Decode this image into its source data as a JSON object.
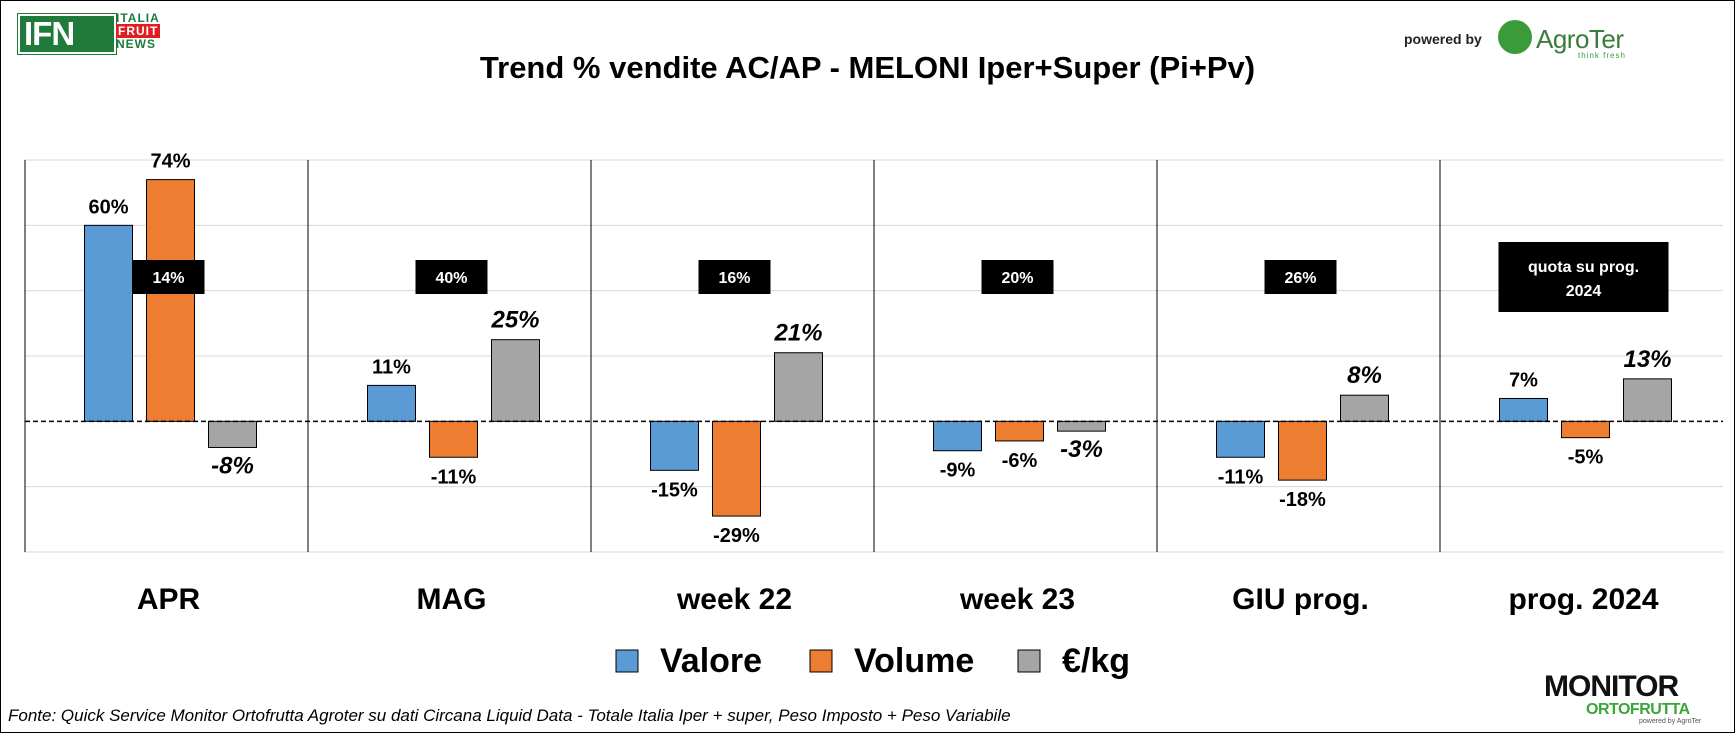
{
  "header": {
    "logo_ifn": "IFN",
    "logo_lines": [
      "ITALIA",
      "FRUIT",
      "NEWS"
    ],
    "powered_by": "powered by",
    "agroter_name": "AgroTer",
    "agroter_tagline": "think fresh"
  },
  "chart_data": {
    "type": "bar",
    "title": "Trend % vendite AC/AP - MELONI  Iper+Super (Pi+Pv)",
    "categories": [
      "APR",
      "MAG",
      "week 22",
      "week 23",
      "GIU prog.",
      "prog. 2024"
    ],
    "series": [
      {
        "name": "Valore",
        "color": "#5b9bd5",
        "values": [
          60,
          11,
          -15,
          -9,
          -11,
          7
        ]
      },
      {
        "name": "Volume",
        "color": "#ed7d31",
        "values": [
          74,
          -11,
          -29,
          -6,
          -18,
          -5
        ]
      },
      {
        "name": "€/kg",
        "color": "#a5a5a5",
        "values": [
          -8,
          25,
          21,
          -3,
          8,
          13
        ]
      }
    ],
    "value_labels": [
      [
        "60%",
        "74%",
        "-8%"
      ],
      [
        "11%",
        "-11%",
        "25%"
      ],
      [
        "-15%",
        "-29%",
        "21%"
      ],
      [
        "-9%",
        "-6%",
        "-3%"
      ],
      [
        "-11%",
        "-18%",
        "8%"
      ],
      [
        "7%",
        "-5%",
        "13%"
      ]
    ],
    "quota_labels": [
      "14%",
      "40%",
      "16%",
      "20%",
      "26%",
      "quota su prog. 2024"
    ],
    "ylim": [
      -40,
      80
    ],
    "grid": true,
    "legend": "bottom",
    "zero_line": "dashed"
  },
  "footer": {
    "source": "Fonte: Quick Service Monitor Ortofrutta Agroter su dati Circana Liquid Data - Totale Italia Iper + super, Peso Imposto + Peso Variabile",
    "monitor_line1": "MONITOR",
    "monitor_line2": "ORTOFRUTTA",
    "monitor_line3": "powered by AgroTer"
  }
}
